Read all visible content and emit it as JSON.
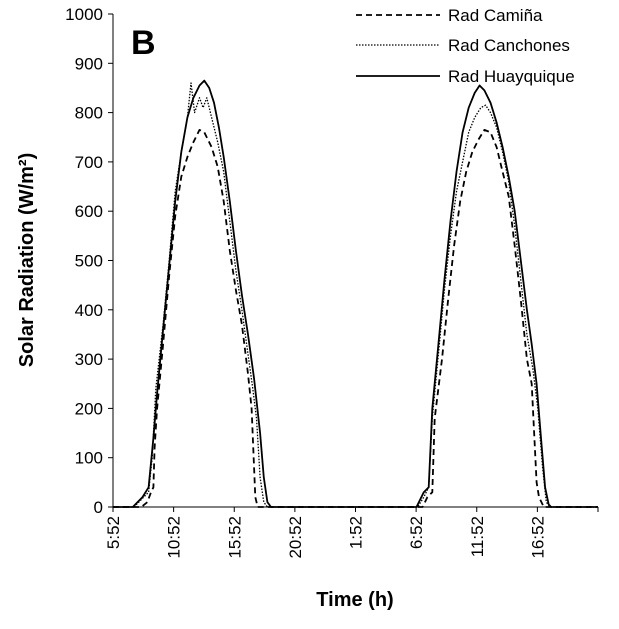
{
  "chart_data": {
    "type": "line",
    "panel_label": "B",
    "title": "",
    "xlabel": "Time (h)",
    "ylabel": "Solar Radiation  (W/m²)",
    "ylim": [
      0,
      1000
    ],
    "yticks": [
      0,
      100,
      200,
      300,
      400,
      500,
      600,
      700,
      800,
      900,
      1000
    ],
    "xlim": [
      5.8667,
      45.8667
    ],
    "xticks": [
      {
        "value": 5.8667,
        "label": "5:52"
      },
      {
        "value": 10.8667,
        "label": "10:52"
      },
      {
        "value": 15.8667,
        "label": "15:52"
      },
      {
        "value": 20.8667,
        "label": "20:52"
      },
      {
        "value": 25.8667,
        "label": "1:52"
      },
      {
        "value": 30.8667,
        "label": "6:52"
      },
      {
        "value": 35.8667,
        "label": "11:52"
      },
      {
        "value": 40.8667,
        "label": "16:52"
      }
    ],
    "grid": false,
    "legend": "top-right",
    "series": [
      {
        "name": "Rad Camiña",
        "style": "dashed",
        "color": "#000000",
        "points": [
          [
            5.87,
            0
          ],
          [
            7.5,
            0
          ],
          [
            8.2,
            0
          ],
          [
            8.7,
            10
          ],
          [
            9.0,
            30
          ],
          [
            9.2,
            40
          ],
          [
            9.3,
            120
          ],
          [
            9.5,
            200
          ],
          [
            10.0,
            330
          ],
          [
            10.5,
            470
          ],
          [
            11.0,
            590
          ],
          [
            11.5,
            670
          ],
          [
            12.0,
            710
          ],
          [
            12.5,
            740
          ],
          [
            13.0,
            765
          ],
          [
            13.4,
            760
          ],
          [
            14.0,
            730
          ],
          [
            14.5,
            690
          ],
          [
            15.0,
            620
          ],
          [
            15.5,
            520
          ],
          [
            16.0,
            440
          ],
          [
            16.5,
            370
          ],
          [
            17.0,
            270
          ],
          [
            17.3,
            200
          ],
          [
            17.6,
            20
          ],
          [
            17.8,
            0
          ],
          [
            18.5,
            0
          ],
          [
            30.0,
            0
          ],
          [
            31.4,
            0
          ],
          [
            31.8,
            20
          ],
          [
            32.2,
            30
          ],
          [
            32.4,
            180
          ],
          [
            33.0,
            300
          ],
          [
            33.5,
            420
          ],
          [
            34.0,
            530
          ],
          [
            34.5,
            620
          ],
          [
            35.0,
            680
          ],
          [
            35.5,
            720
          ],
          [
            36.0,
            745
          ],
          [
            36.5,
            765
          ],
          [
            37.0,
            760
          ],
          [
            37.5,
            730
          ],
          [
            38.0,
            680
          ],
          [
            38.5,
            630
          ],
          [
            39.0,
            530
          ],
          [
            39.5,
            420
          ],
          [
            40.0,
            300
          ],
          [
            40.4,
            250
          ],
          [
            40.8,
            50
          ],
          [
            41.0,
            20
          ],
          [
            41.4,
            0
          ],
          [
            45.87,
            0
          ]
        ]
      },
      {
        "name": "Rad Canchones",
        "style": "dotted",
        "color": "#000000",
        "points": [
          [
            5.87,
            0
          ],
          [
            7.6,
            0
          ],
          [
            8.4,
            20
          ],
          [
            8.8,
            30
          ],
          [
            9.1,
            100
          ],
          [
            9.4,
            240
          ],
          [
            10.0,
            370
          ],
          [
            10.5,
            500
          ],
          [
            11.0,
            640
          ],
          [
            11.5,
            720
          ],
          [
            12.0,
            790
          ],
          [
            12.3,
            860
          ],
          [
            12.6,
            800
          ],
          [
            13.0,
            830
          ],
          [
            13.3,
            810
          ],
          [
            13.6,
            830
          ],
          [
            14.0,
            790
          ],
          [
            14.5,
            740
          ],
          [
            15.0,
            680
          ],
          [
            15.5,
            580
          ],
          [
            16.0,
            480
          ],
          [
            16.5,
            400
          ],
          [
            17.0,
            310
          ],
          [
            17.4,
            240
          ],
          [
            17.7,
            180
          ],
          [
            18.0,
            60
          ],
          [
            18.3,
            10
          ],
          [
            18.6,
            0
          ],
          [
            19.5,
            0
          ],
          [
            30.0,
            0
          ],
          [
            31.0,
            0
          ],
          [
            31.5,
            20
          ],
          [
            31.9,
            40
          ],
          [
            32.2,
            180
          ],
          [
            32.7,
            310
          ],
          [
            33.2,
            440
          ],
          [
            33.7,
            550
          ],
          [
            34.2,
            640
          ],
          [
            34.7,
            700
          ],
          [
            35.2,
            760
          ],
          [
            35.7,
            790
          ],
          [
            36.2,
            810
          ],
          [
            36.6,
            815
          ],
          [
            37.0,
            800
          ],
          [
            37.5,
            770
          ],
          [
            38.0,
            720
          ],
          [
            38.5,
            660
          ],
          [
            39.0,
            570
          ],
          [
            39.5,
            460
          ],
          [
            40.0,
            350
          ],
          [
            40.5,
            280
          ],
          [
            40.9,
            200
          ],
          [
            41.3,
            80
          ],
          [
            41.6,
            10
          ],
          [
            41.9,
            0
          ],
          [
            45.87,
            0
          ]
        ]
      },
      {
        "name": "Rad Huayquique",
        "style": "solid",
        "color": "#000000",
        "points": [
          [
            5.87,
            0
          ],
          [
            7.5,
            0
          ],
          [
            8.3,
            20
          ],
          [
            8.8,
            40
          ],
          [
            9.2,
            140
          ],
          [
            9.5,
            230
          ],
          [
            10.0,
            360
          ],
          [
            10.5,
            490
          ],
          [
            11.0,
            620
          ],
          [
            11.5,
            720
          ],
          [
            12.0,
            790
          ],
          [
            12.5,
            830
          ],
          [
            13.0,
            855
          ],
          [
            13.4,
            865
          ],
          [
            13.8,
            850
          ],
          [
            14.2,
            820
          ],
          [
            14.6,
            770
          ],
          [
            15.0,
            710
          ],
          [
            15.5,
            620
          ],
          [
            16.0,
            520
          ],
          [
            16.5,
            430
          ],
          [
            17.0,
            350
          ],
          [
            17.5,
            260
          ],
          [
            18.0,
            150
          ],
          [
            18.3,
            60
          ],
          [
            18.6,
            10
          ],
          [
            18.9,
            0
          ],
          [
            19.5,
            0
          ],
          [
            30.0,
            0
          ],
          [
            30.9,
            0
          ],
          [
            31.5,
            30
          ],
          [
            31.9,
            40
          ],
          [
            32.2,
            200
          ],
          [
            32.7,
            330
          ],
          [
            33.2,
            460
          ],
          [
            33.7,
            580
          ],
          [
            34.2,
            680
          ],
          [
            34.7,
            760
          ],
          [
            35.2,
            810
          ],
          [
            35.7,
            840
          ],
          [
            36.1,
            855
          ],
          [
            36.5,
            845
          ],
          [
            37.0,
            820
          ],
          [
            37.5,
            780
          ],
          [
            38.0,
            730
          ],
          [
            38.5,
            670
          ],
          [
            39.0,
            600
          ],
          [
            39.5,
            500
          ],
          [
            40.0,
            400
          ],
          [
            40.4,
            330
          ],
          [
            40.8,
            250
          ],
          [
            41.2,
            130
          ],
          [
            41.5,
            40
          ],
          [
            41.8,
            5
          ],
          [
            42.0,
            0
          ],
          [
            45.87,
            0
          ]
        ]
      }
    ]
  }
}
